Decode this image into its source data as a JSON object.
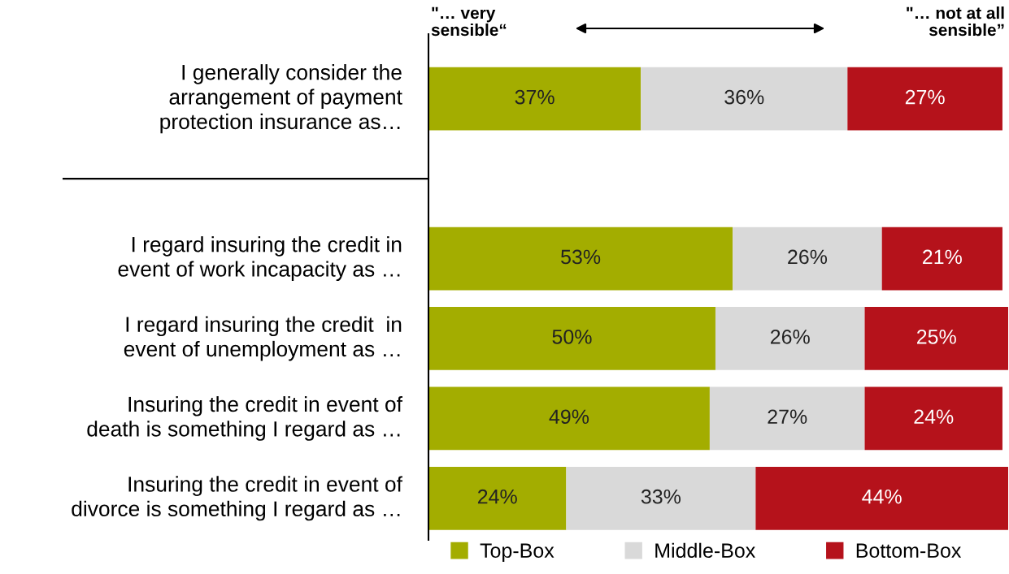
{
  "chart_data": {
    "type": "bar",
    "orientation": "horizontal",
    "stacked": true,
    "legend": "bottom",
    "categories": [
      "I generally consider the\narrangement of payment\nprotection insurance as…",
      null,
      "I regard insuring the credit in\nevent of work incapacity as …",
      "I regard insuring the credit  in\nevent of unemployment as …",
      "Insuring the credit in event of\ndeath is something I regard as …",
      "Insuring the credit in event of\ndivorce is something I regard as …"
    ],
    "series": [
      {
        "name": "Top-Box",
        "color": "#a3ad00",
        "values": [
          37,
          null,
          53,
          50,
          49,
          24
        ],
        "value_labels": [
          "37%",
          null,
          "53%",
          "50%",
          "49%",
          "24%"
        ]
      },
      {
        "name": "Middle-Box",
        "color": "#d9d9d9",
        "values": [
          36,
          null,
          26,
          26,
          27,
          33
        ],
        "value_labels": [
          "36%",
          null,
          "26%",
          "26%",
          "27%",
          "33%"
        ]
      },
      {
        "name": "Bottom-Box",
        "color": "#b5121b",
        "values": [
          27,
          null,
          21,
          25,
          24,
          44
        ],
        "value_labels": [
          "27%",
          null,
          "21%",
          "25%",
          "24%",
          "44%"
        ]
      }
    ],
    "annotations": [
      "\"… very\nsensible“",
      "\"… not at all\nsensible”"
    ]
  }
}
